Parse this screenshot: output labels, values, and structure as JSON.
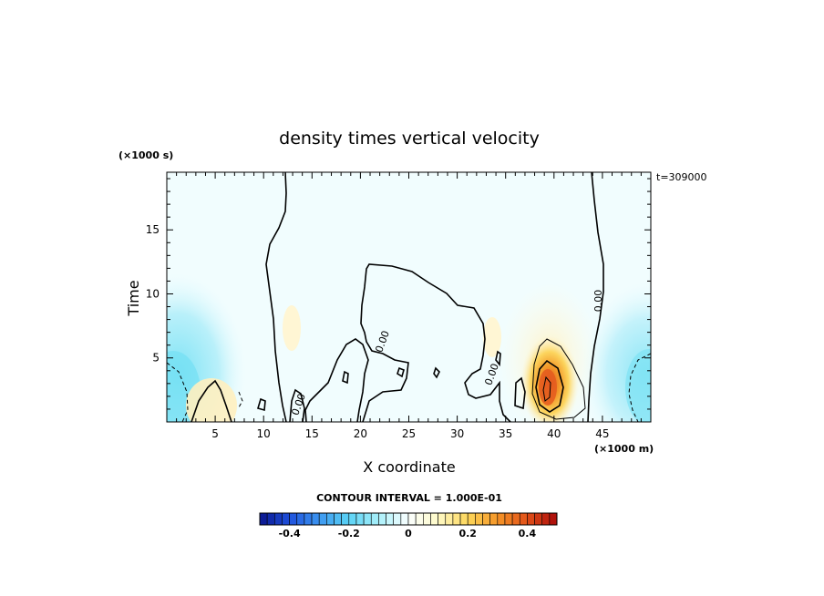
{
  "chart_data": {
    "type": "heatmap",
    "title": "density times vertical velocity",
    "xlabel": "X coordinate",
    "ylabel": "Time",
    "x_unit": "(×1000 m)",
    "y_unit": "(×1000 s)",
    "time_stamp": "t=309000",
    "xlim": [
      0,
      50
    ],
    "ylim": [
      0,
      19.5
    ],
    "x_ticks": [
      5,
      10,
      15,
      20,
      25,
      30,
      35,
      40,
      45
    ],
    "y_ticks": [
      5,
      10,
      15
    ],
    "x_tick_labels": [
      "5",
      "10",
      "15",
      "20",
      "25",
      "30",
      "35",
      "40",
      "45"
    ],
    "y_tick_labels": [
      "5",
      "10",
      "15"
    ],
    "contour_labels": [
      "0.00",
      "0.00",
      "0.00",
      "0.00"
    ],
    "contour_interval": "CONTOUR INTERVAL = 1.000E-01",
    "colorbar": {
      "range": [
        -0.5,
        0.5
      ],
      "ticks": [
        -0.4,
        -0.2,
        0,
        0.2,
        0.4
      ],
      "tick_labels": [
        "-0.4",
        "-0.2",
        "0",
        "0.2",
        "0.4"
      ]
    },
    "field_features": [
      {
        "kind": "max",
        "x": 39.5,
        "t": 2.8,
        "value": 0.4
      },
      {
        "kind": "min",
        "x": 1.5,
        "t": 2.5,
        "value": -0.15
      },
      {
        "kind": "min",
        "x": 48.5,
        "t": 3.0,
        "value": -0.15
      }
    ]
  }
}
